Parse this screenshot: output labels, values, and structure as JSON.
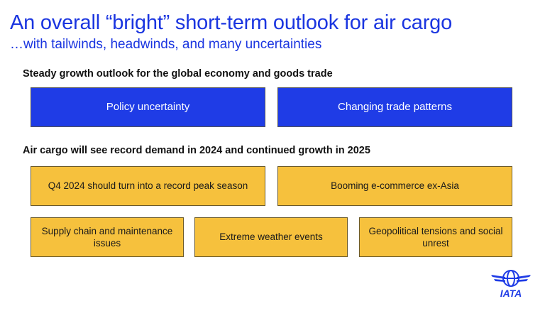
{
  "slide": {
    "title": "An overall “bright” short-term outlook for air cargo",
    "subtitle": "…with tailwinds, headwinds, and many uncertainties"
  },
  "section1": {
    "heading": "Steady growth outlook for the global economy and goods trade",
    "boxes": [
      "Policy uncertainty",
      "Changing trade patterns"
    ]
  },
  "section2": {
    "heading": "Air cargo will see record demand in 2024 and continued growth in 2025",
    "boxes": [
      "Q4 2024 should turn into a record peak season",
      "Booming e-commerce ex-Asia",
      "Supply chain and maintenance issues",
      "Extreme weather events",
      "Geopolitical tensions and social unrest"
    ]
  },
  "logo": {
    "text": "IATA",
    "icon": "iata-globe-icon"
  },
  "colors": {
    "blue": "#1f3ce6",
    "title_blue": "#1a35e0",
    "yellow": "#f6c13d"
  }
}
